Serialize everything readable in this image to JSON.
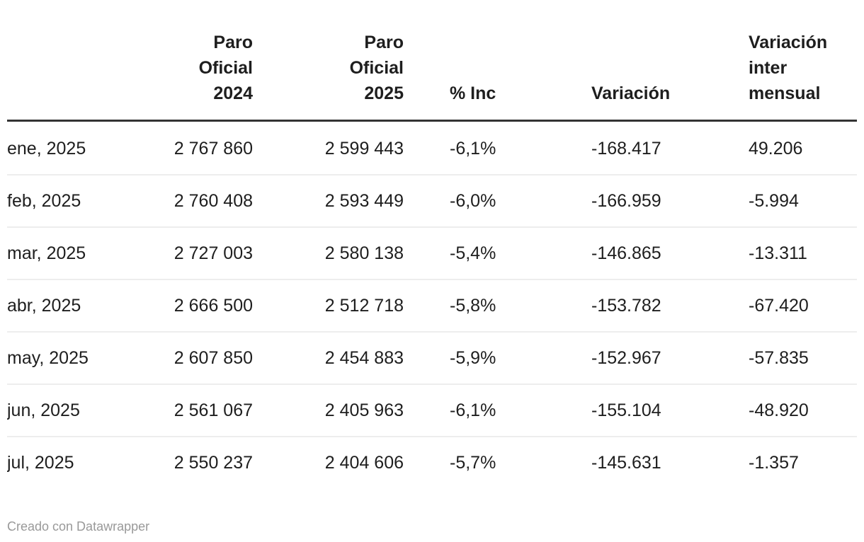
{
  "colors": {
    "text": "#1e1e1e",
    "header_border": "#333333",
    "row_divider": "#ededed",
    "credit": "#999999",
    "background": "#ffffff"
  },
  "table": {
    "headers": [
      {
        "id": "month",
        "label": ""
      },
      {
        "id": "paro-oficial-2024",
        "label": "Paro\nOficial\n2024"
      },
      {
        "id": "paro-oficial-2025",
        "label": "Paro\nOficial\n2025"
      },
      {
        "id": "pct-inc",
        "label": "% Inc"
      },
      {
        "id": "variacion",
        "label": "Variación"
      },
      {
        "id": "variacion-intermensual",
        "label": "Variación\ninter\nmensual"
      }
    ],
    "rows": [
      [
        "ene, 2025",
        "2 767 860",
        "2 599 443",
        "-6,1%",
        "-168.417",
        "49.206"
      ],
      [
        "feb, 2025",
        "2 760 408",
        "2 593 449",
        "-6,0%",
        "-166.959",
        "-5.994"
      ],
      [
        "mar, 2025",
        "2 727 003",
        "2 580 138",
        "-5,4%",
        "-146.865",
        "-13.311"
      ],
      [
        "abr, 2025",
        "2 666 500",
        "2 512 718",
        "-5,8%",
        "-153.782",
        "-67.420"
      ],
      [
        "may, 2025",
        "2 607 850",
        "2 454 883",
        "-5,9%",
        "-152.967",
        "-57.835"
      ],
      [
        "jun, 2025",
        "2 561 067",
        "2 405 963",
        "-6,1%",
        "-155.104",
        "-48.920"
      ],
      [
        "jul, 2025",
        "2 550 237",
        "2 404 606",
        "-5,7%",
        "-145.631",
        "-1.357"
      ]
    ]
  },
  "footer": {
    "credit": "Creado con Datawrapper"
  },
  "chart_data": {
    "type": "table",
    "title": "",
    "columns": [
      "",
      "Paro Oficial 2024",
      "Paro Oficial 2025",
      "% Inc",
      "Variación",
      "Variación inter mensual"
    ],
    "rows": [
      [
        "ene, 2025",
        "2 767 860",
        "2 599 443",
        "-6,1%",
        "-168.417",
        "49.206"
      ],
      [
        "feb, 2025",
        "2 760 408",
        "2 593 449",
        "-6,0%",
        "-166.959",
        "-5.994"
      ],
      [
        "mar, 2025",
        "2 727 003",
        "2 580 138",
        "-5,4%",
        "-146.865",
        "-13.311"
      ],
      [
        "abr, 2025",
        "2 666 500",
        "2 512 718",
        "-5,8%",
        "-153.782",
        "-67.420"
      ],
      [
        "may, 2025",
        "2 607 850",
        "2 454 883",
        "-5,9%",
        "-152.967",
        "-57.835"
      ],
      [
        "jun, 2025",
        "2 561 067",
        "2 405 963",
        "-6,1%",
        "-155.104",
        "-48.920"
      ],
      [
        "jul, 2025",
        "2 550 237",
        "2 404 606",
        "-5,7%",
        "-145.631",
        "-1.357"
      ]
    ],
    "numeric": {
      "months": [
        "ene, 2025",
        "feb, 2025",
        "mar, 2025",
        "abr, 2025",
        "may, 2025",
        "jun, 2025",
        "jul, 2025"
      ],
      "paro_oficial_2024": [
        2767860,
        2760408,
        2727003,
        2666500,
        2607850,
        2561067,
        2550237
      ],
      "paro_oficial_2025": [
        2599443,
        2593449,
        2580138,
        2512718,
        2454883,
        2405963,
        2404606
      ],
      "pct_inc": [
        -6.1,
        -6.0,
        -5.4,
        -5.8,
        -5.9,
        -6.1,
        -5.7
      ],
      "variacion": [
        -168417,
        -166959,
        -146865,
        -153782,
        -152967,
        -155104,
        -145631
      ],
      "variacion_intermensual": [
        49206,
        -5994,
        -13311,
        -67420,
        -57835,
        -48920,
        -1357
      ]
    },
    "credit": "Creado con Datawrapper"
  }
}
